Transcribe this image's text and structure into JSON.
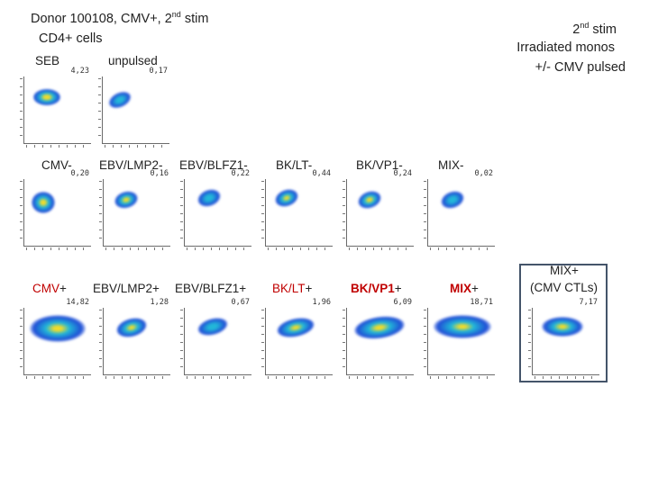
{
  "title": {
    "donor_prefix": "Donor ",
    "donor_id": "100108",
    "donor_rest": ", CMV+, 2",
    "donor_sup": "nd",
    "donor_suffix": " stim",
    "cells": "CD4+ cells"
  },
  "right_note": {
    "line1_main": "2",
    "line1_sup": "nd",
    "line1_rest": " stim",
    "line2": "Irradiated monos",
    "line3": "+/- CMV pulsed"
  },
  "row1": {
    "labels": [
      "SEB",
      "unpulsed"
    ],
    "values": [
      "4,23",
      "0,17"
    ]
  },
  "row2": {
    "labels": [
      "CMV-",
      "EBV/LMP2-",
      "EBV/BLFZ1-",
      "BK/LT-",
      "BK/VP1-",
      "MIX-"
    ],
    "values": [
      "0,20",
      "0,16",
      "0,22",
      "0,44",
      "0,24",
      "0,02"
    ]
  },
  "row3": {
    "labels": [
      {
        "main": "CMV",
        "sign": "+"
      },
      {
        "main": "EBV/LMP2",
        "sign": "+"
      },
      {
        "main": "EBV/BLFZ1",
        "sign": "+"
      },
      {
        "main": "BK/LT",
        "sign": "+"
      },
      {
        "main": "BK/VP1",
        "sign": "+"
      },
      {
        "main": "MIX",
        "sign": "+"
      }
    ],
    "values": [
      "14,82",
      "1,28",
      "0,67",
      "1,96",
      "6,09",
      "18,71"
    ],
    "ctl_label_line1": "MIX+",
    "ctl_label_line2": "(CMV CTLs)",
    "ctl_value": "7,17"
  },
  "colors": {
    "accent_red": "#c00000",
    "frame": "#44546a",
    "density_low": "#1f4fd6",
    "density_mid": "#22b7d8",
    "density_high": "#f2dc2a"
  }
}
